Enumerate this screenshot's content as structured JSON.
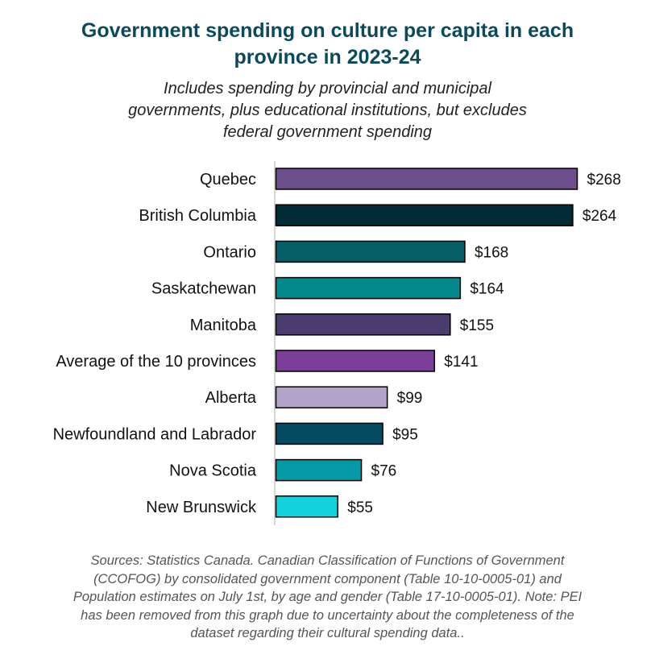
{
  "chart_data": {
    "type": "bar",
    "orientation": "horizontal",
    "title_lines": [
      "Government spending on culture per capita in each",
      "province in 2023-24"
    ],
    "subtitle_lines": [
      "Includes spending by provincial and municipal",
      "governments, plus educational institutions, but excludes",
      "federal government spending"
    ],
    "categories": [
      "Quebec",
      "British Columbia",
      "Ontario",
      "Saskatchewan",
      "Manitoba",
      "Average of the 10 provinces",
      "Alberta",
      "Newfoundland and Labrador",
      "Nova Scotia",
      "New Brunswick"
    ],
    "values": [
      268,
      264,
      168,
      164,
      155,
      141,
      99,
      95,
      76,
      55
    ],
    "value_labels": [
      "$268",
      "$264",
      "$168",
      "$164",
      "$155",
      "$141",
      "$99",
      "$95",
      "$76",
      "$55"
    ],
    "bar_colors": [
      "#6b4e8a",
      "#022b38",
      "#055e66",
      "#03898c",
      "#4a3c6e",
      "#7b3f9a",
      "#b3a3c9",
      "#054b61",
      "#0699a6",
      "#13d3de"
    ],
    "xlim": [
      0,
      268
    ],
    "grid": false,
    "legend": "none",
    "notes_lines": [
      "Sources: Statistics Canada. Canadian Classification of Functions of Government",
      "(CCOFOG) by consolidated government component (Table 10-10-0005-01) and",
      "Population estimates on July 1st, by age and gender (Table 17-10-0005-01). Note: PEI",
      "has been removed from this graph due to uncertainty about the completeness of the",
      "dataset regarding their cultural spending data.."
    ]
  }
}
